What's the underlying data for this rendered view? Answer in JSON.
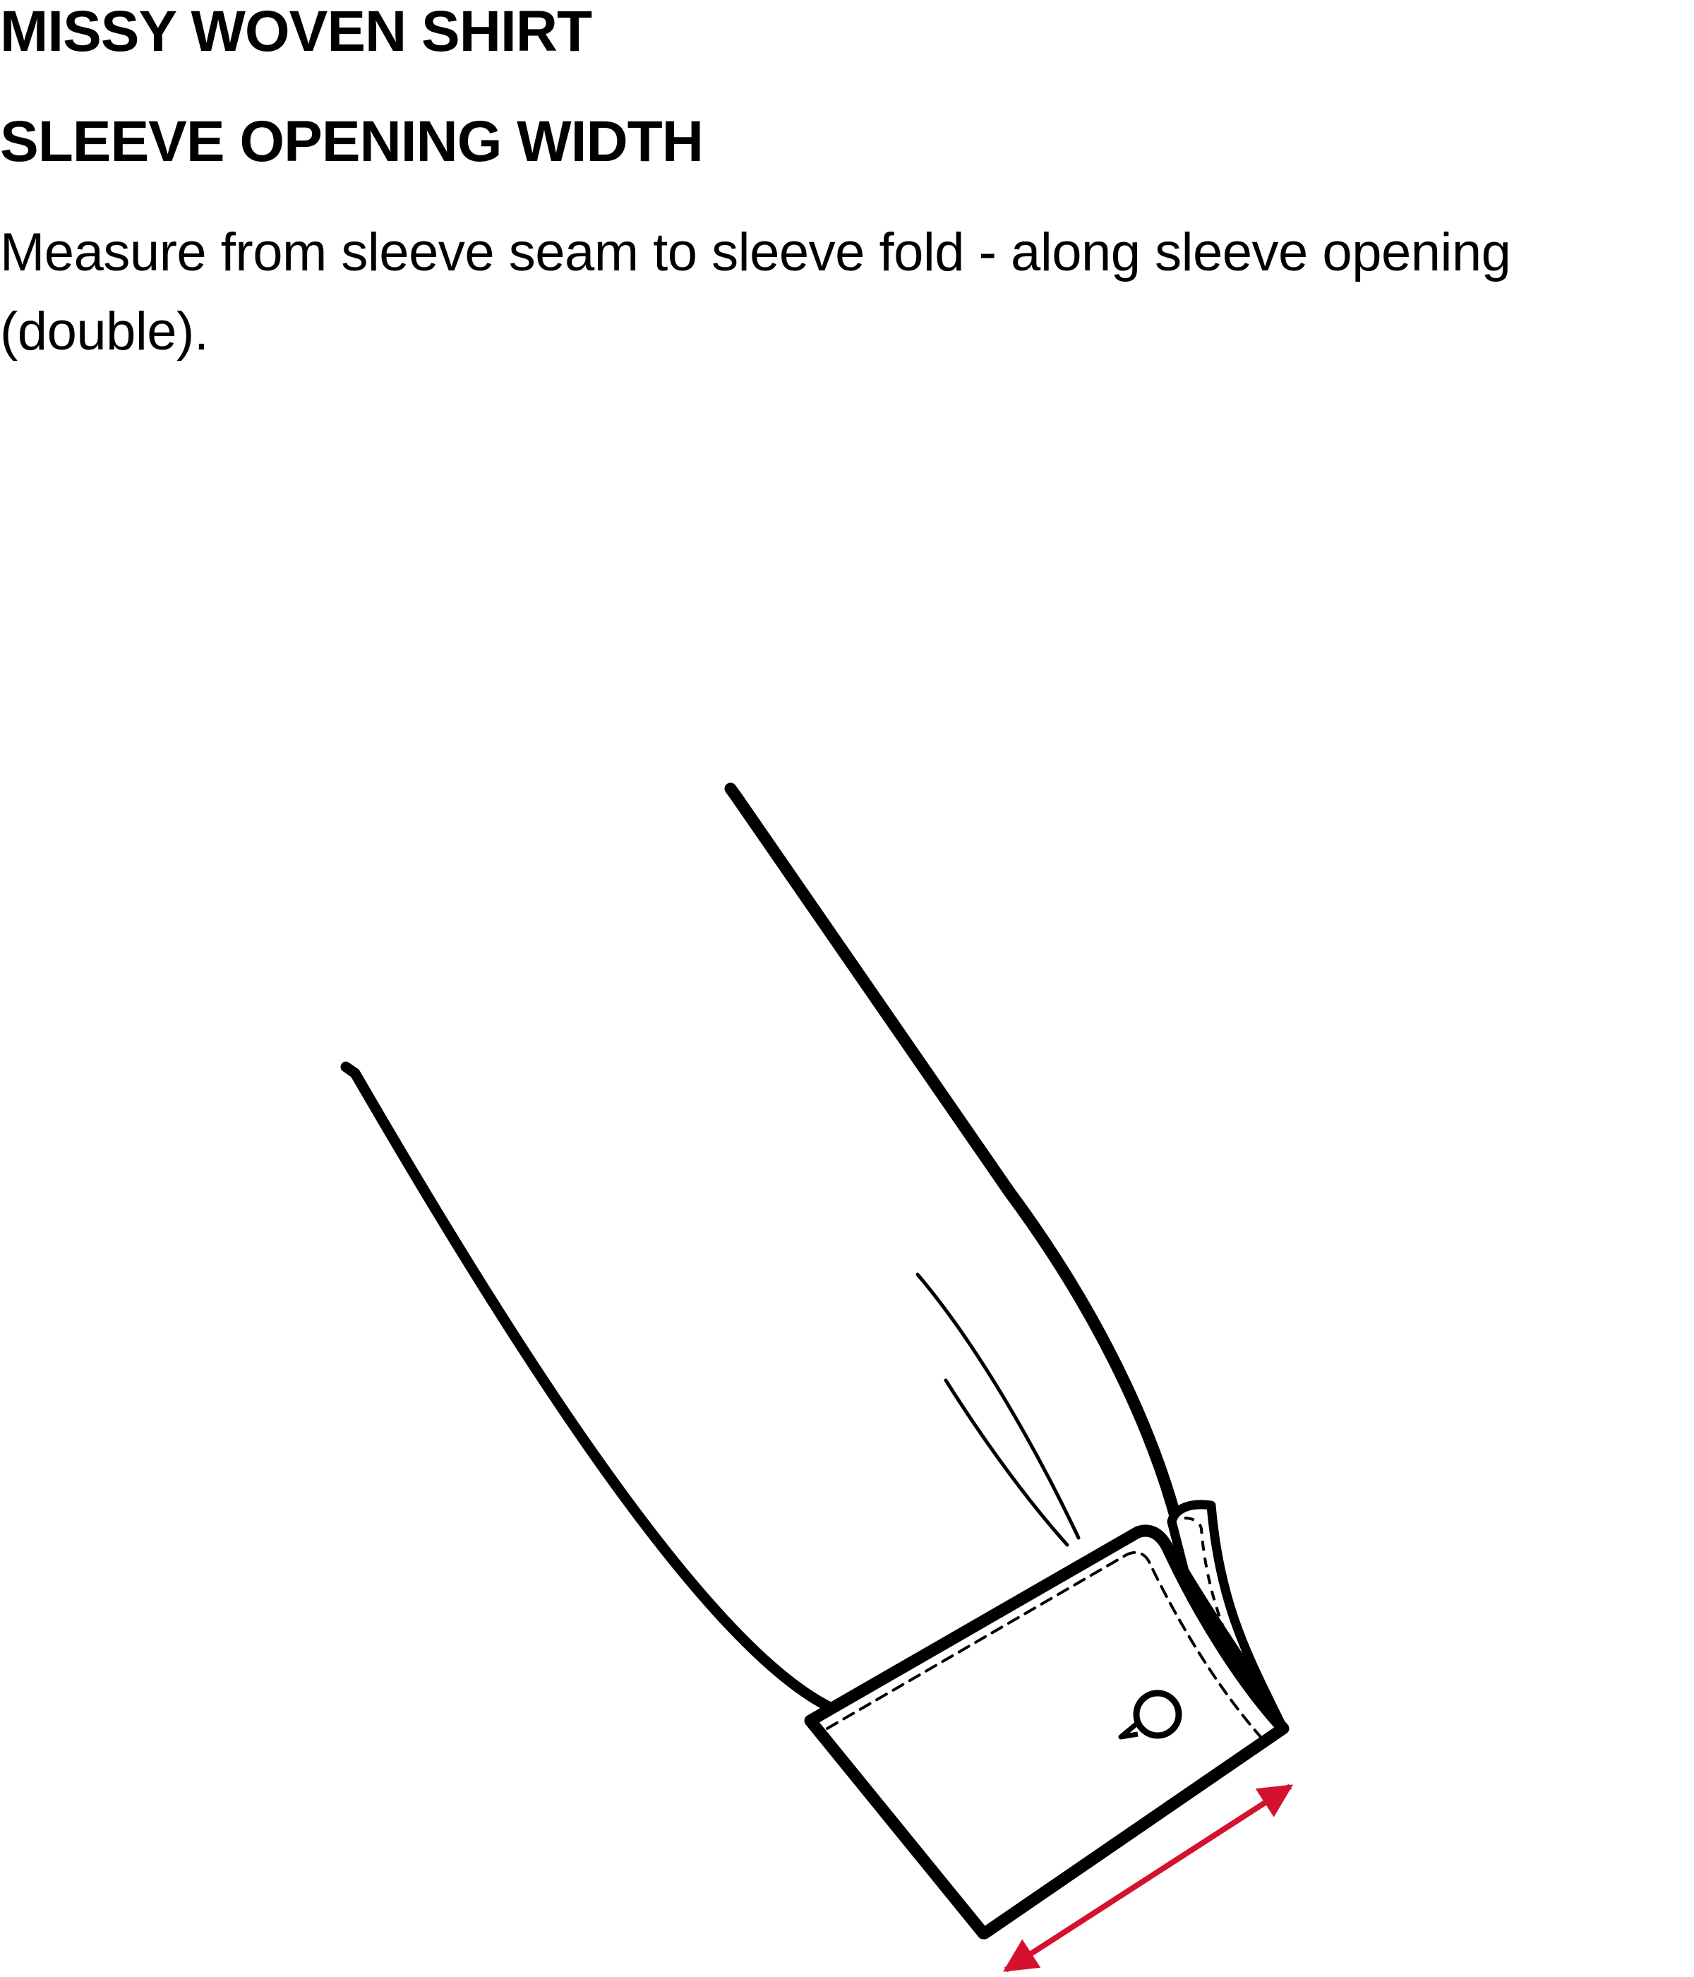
{
  "title": "MISSY WOVEN SHIRT",
  "subtitle": "SLEEVE OPENING WIDTH",
  "instructions": "Measure from sleeve seam to sleeve fold - along sleeve opening (double).",
  "colors": {
    "text": "#000000",
    "outline": "#000000",
    "measure_arrow": "#d4112f",
    "background": "#ffffff"
  },
  "icons": [
    "sleeve-illustration",
    "cuff-button-icon",
    "measurement-arrow-icon"
  ]
}
